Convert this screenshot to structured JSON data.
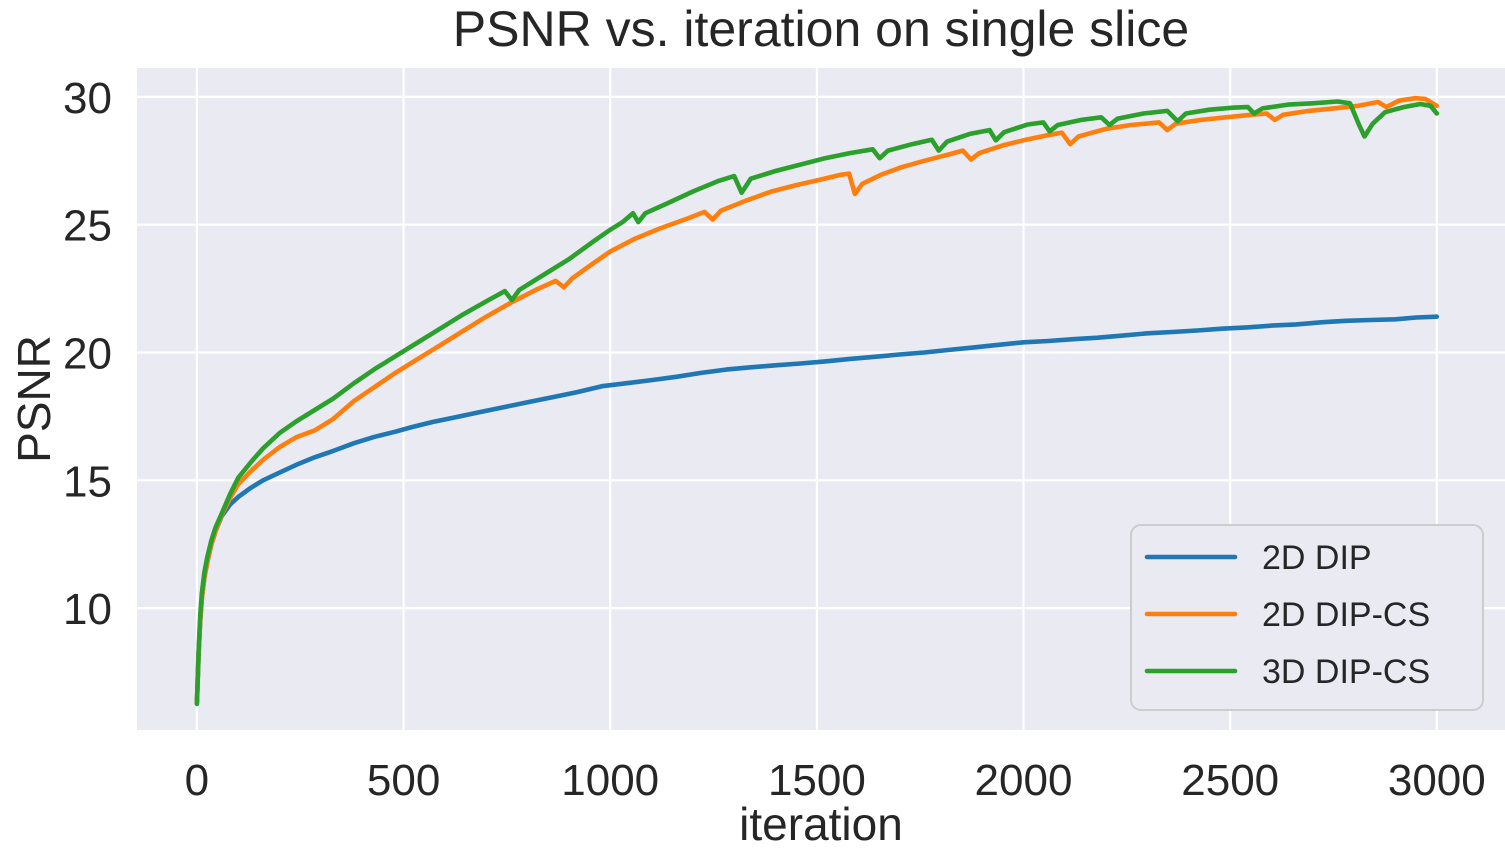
{
  "chart_data": {
    "type": "line",
    "title": "PSNR vs. iteration on single slice",
    "xlabel": "iteration",
    "ylabel": "PSNR",
    "x_ticks": [
      0,
      500,
      1000,
      1500,
      2000,
      2500,
      3000
    ],
    "y_ticks": [
      10,
      15,
      20,
      25,
      30
    ],
    "xlim": [
      -145,
      3165
    ],
    "ylim": [
      5.23,
      31.13
    ],
    "grid": true,
    "legend_position": "lower right",
    "colors": {
      "figure_bg": "#ffffff",
      "plot_bg": "#eaeaf2",
      "grid": "#ffffff",
      "text": "#262626",
      "legend_bg": "#eaeaf2",
      "legend_border": "#cccccc"
    },
    "series": [
      {
        "name": "2D DIP",
        "color": "#1f77b4",
        "points": [
          [
            0,
            6.3
          ],
          [
            4,
            8.2
          ],
          [
            8,
            9.5
          ],
          [
            12,
            10.4
          ],
          [
            18,
            11.2
          ],
          [
            25,
            11.8
          ],
          [
            35,
            12.5
          ],
          [
            45,
            13.0
          ],
          [
            60,
            13.6
          ],
          [
            80,
            14.05
          ],
          [
            100,
            14.35
          ],
          [
            130,
            14.7
          ],
          [
            160,
            15.0
          ],
          [
            200,
            15.3
          ],
          [
            240,
            15.6
          ],
          [
            285,
            15.9
          ],
          [
            330,
            16.15
          ],
          [
            380,
            16.45
          ],
          [
            430,
            16.7
          ],
          [
            480,
            16.9
          ],
          [
            520,
            17.08
          ],
          [
            570,
            17.28
          ],
          [
            620,
            17.45
          ],
          [
            680,
            17.65
          ],
          [
            740,
            17.85
          ],
          [
            800,
            18.05
          ],
          [
            860,
            18.25
          ],
          [
            920,
            18.45
          ],
          [
            980,
            18.68
          ],
          [
            1040,
            18.8
          ],
          [
            1100,
            18.92
          ],
          [
            1160,
            19.05
          ],
          [
            1220,
            19.2
          ],
          [
            1280,
            19.33
          ],
          [
            1340,
            19.42
          ],
          [
            1400,
            19.5
          ],
          [
            1460,
            19.57
          ],
          [
            1520,
            19.65
          ],
          [
            1580,
            19.75
          ],
          [
            1640,
            19.83
          ],
          [
            1700,
            19.92
          ],
          [
            1760,
            20.0
          ],
          [
            1820,
            20.1
          ],
          [
            1880,
            20.2
          ],
          [
            1940,
            20.3
          ],
          [
            2000,
            20.4
          ],
          [
            2060,
            20.45
          ],
          [
            2120,
            20.52
          ],
          [
            2180,
            20.58
          ],
          [
            2240,
            20.66
          ],
          [
            2300,
            20.75
          ],
          [
            2360,
            20.8
          ],
          [
            2420,
            20.86
          ],
          [
            2480,
            20.93
          ],
          [
            2540,
            20.98
          ],
          [
            2600,
            21.05
          ],
          [
            2660,
            21.1
          ],
          [
            2720,
            21.18
          ],
          [
            2780,
            21.24
          ],
          [
            2840,
            21.27
          ],
          [
            2900,
            21.3
          ],
          [
            2950,
            21.37
          ],
          [
            3000,
            21.4
          ]
        ]
      },
      {
        "name": "2D DIP-CS",
        "color": "#ff7f0e",
        "points": [
          [
            0,
            6.3
          ],
          [
            4,
            8.2
          ],
          [
            8,
            9.5
          ],
          [
            12,
            10.4
          ],
          [
            18,
            11.2
          ],
          [
            25,
            11.8
          ],
          [
            35,
            12.5
          ],
          [
            45,
            13.0
          ],
          [
            60,
            13.65
          ],
          [
            80,
            14.3
          ],
          [
            100,
            14.85
          ],
          [
            130,
            15.35
          ],
          [
            160,
            15.8
          ],
          [
            200,
            16.3
          ],
          [
            240,
            16.68
          ],
          [
            285,
            16.95
          ],
          [
            330,
            17.4
          ],
          [
            380,
            18.1
          ],
          [
            430,
            18.65
          ],
          [
            480,
            19.2
          ],
          [
            530,
            19.7
          ],
          [
            580,
            20.2
          ],
          [
            640,
            20.8
          ],
          [
            700,
            21.4
          ],
          [
            760,
            21.95
          ],
          [
            820,
            22.45
          ],
          [
            868,
            22.8
          ],
          [
            888,
            22.55
          ],
          [
            908,
            22.9
          ],
          [
            960,
            23.5
          ],
          [
            1000,
            23.95
          ],
          [
            1060,
            24.45
          ],
          [
            1120,
            24.85
          ],
          [
            1180,
            25.2
          ],
          [
            1228,
            25.5
          ],
          [
            1248,
            25.2
          ],
          [
            1268,
            25.55
          ],
          [
            1330,
            25.95
          ],
          [
            1390,
            26.3
          ],
          [
            1450,
            26.55
          ],
          [
            1505,
            26.75
          ],
          [
            1558,
            26.95
          ],
          [
            1578,
            27.0
          ],
          [
            1592,
            26.2
          ],
          [
            1610,
            26.6
          ],
          [
            1655,
            26.95
          ],
          [
            1705,
            27.25
          ],
          [
            1760,
            27.5
          ],
          [
            1820,
            27.75
          ],
          [
            1853,
            27.9
          ],
          [
            1873,
            27.55
          ],
          [
            1893,
            27.8
          ],
          [
            1950,
            28.1
          ],
          [
            2000,
            28.3
          ],
          [
            2058,
            28.5
          ],
          [
            2093,
            28.6
          ],
          [
            2113,
            28.15
          ],
          [
            2133,
            28.45
          ],
          [
            2200,
            28.75
          ],
          [
            2260,
            28.9
          ],
          [
            2328,
            29.0
          ],
          [
            2348,
            28.7
          ],
          [
            2368,
            28.95
          ],
          [
            2430,
            29.1
          ],
          [
            2490,
            29.2
          ],
          [
            2550,
            29.3
          ],
          [
            2588,
            29.35
          ],
          [
            2608,
            29.1
          ],
          [
            2628,
            29.3
          ],
          [
            2690,
            29.45
          ],
          [
            2750,
            29.55
          ],
          [
            2810,
            29.65
          ],
          [
            2858,
            29.8
          ],
          [
            2878,
            29.6
          ],
          [
            2908,
            29.85
          ],
          [
            2948,
            29.95
          ],
          [
            2972,
            29.92
          ],
          [
            3000,
            29.65
          ]
        ]
      },
      {
        "name": "3D DIP-CS",
        "color": "#2ca02c",
        "points": [
          [
            0,
            6.25
          ],
          [
            4,
            8.3
          ],
          [
            8,
            9.7
          ],
          [
            12,
            10.6
          ],
          [
            18,
            11.4
          ],
          [
            25,
            12.0
          ],
          [
            35,
            12.65
          ],
          [
            45,
            13.15
          ],
          [
            60,
            13.7
          ],
          [
            80,
            14.45
          ],
          [
            100,
            15.1
          ],
          [
            130,
            15.7
          ],
          [
            160,
            16.25
          ],
          [
            200,
            16.85
          ],
          [
            240,
            17.3
          ],
          [
            285,
            17.75
          ],
          [
            330,
            18.2
          ],
          [
            380,
            18.8
          ],
          [
            430,
            19.35
          ],
          [
            480,
            19.85
          ],
          [
            530,
            20.35
          ],
          [
            580,
            20.85
          ],
          [
            640,
            21.45
          ],
          [
            700,
            22.0
          ],
          [
            745,
            22.4
          ],
          [
            762,
            22.05
          ],
          [
            780,
            22.45
          ],
          [
            840,
            23.05
          ],
          [
            900,
            23.65
          ],
          [
            960,
            24.35
          ],
          [
            1000,
            24.8
          ],
          [
            1030,
            25.1
          ],
          [
            1055,
            25.45
          ],
          [
            1068,
            25.1
          ],
          [
            1085,
            25.45
          ],
          [
            1140,
            25.85
          ],
          [
            1200,
            26.3
          ],
          [
            1260,
            26.7
          ],
          [
            1300,
            26.9
          ],
          [
            1318,
            26.25
          ],
          [
            1340,
            26.8
          ],
          [
            1400,
            27.1
          ],
          [
            1460,
            27.35
          ],
          [
            1520,
            27.6
          ],
          [
            1580,
            27.8
          ],
          [
            1635,
            27.95
          ],
          [
            1652,
            27.6
          ],
          [
            1672,
            27.9
          ],
          [
            1730,
            28.15
          ],
          [
            1778,
            28.32
          ],
          [
            1795,
            27.9
          ],
          [
            1815,
            28.25
          ],
          [
            1870,
            28.55
          ],
          [
            1918,
            28.7
          ],
          [
            1933,
            28.3
          ],
          [
            1953,
            28.62
          ],
          [
            2010,
            28.92
          ],
          [
            2048,
            29.0
          ],
          [
            2063,
            28.65
          ],
          [
            2083,
            28.9
          ],
          [
            2140,
            29.1
          ],
          [
            2188,
            29.2
          ],
          [
            2208,
            28.9
          ],
          [
            2228,
            29.15
          ],
          [
            2290,
            29.35
          ],
          [
            2348,
            29.45
          ],
          [
            2373,
            29.05
          ],
          [
            2393,
            29.35
          ],
          [
            2450,
            29.5
          ],
          [
            2510,
            29.58
          ],
          [
            2543,
            29.6
          ],
          [
            2558,
            29.35
          ],
          [
            2578,
            29.55
          ],
          [
            2640,
            29.7
          ],
          [
            2700,
            29.75
          ],
          [
            2760,
            29.82
          ],
          [
            2790,
            29.75
          ],
          [
            2812,
            28.9
          ],
          [
            2825,
            28.45
          ],
          [
            2845,
            28.95
          ],
          [
            2875,
            29.4
          ],
          [
            2920,
            29.6
          ],
          [
            2960,
            29.72
          ],
          [
            2985,
            29.65
          ],
          [
            3000,
            29.35
          ]
        ]
      }
    ]
  }
}
